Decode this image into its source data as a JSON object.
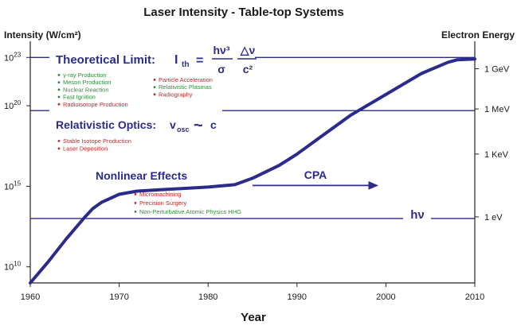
{
  "chart_data": {
    "type": "line",
    "title": "Laser Intensity - Table-top Systems",
    "ylabel": "Intensity (W/cm²)",
    "y2label": "Electron Energy",
    "xlabel": "Year",
    "xlim": [
      1960,
      2010
    ],
    "ylim_log10": [
      9,
      24
    ],
    "x_ticks": [
      "1960",
      "1970",
      "1980",
      "1990",
      "2000",
      "2010"
    ],
    "x_tick_values": [
      1960,
      1970,
      1980,
      1990,
      2000,
      2010
    ],
    "y_ticks": [
      {
        "base": "10",
        "exp": "23",
        "value": 23
      },
      {
        "base": "10",
        "exp": "20",
        "value": 20
      },
      {
        "base": "10",
        "exp": "15",
        "value": 15
      },
      {
        "base": "10",
        "exp": "10",
        "value": 10
      }
    ],
    "right_ticks": [
      {
        "label": "1 GeV",
        "value": 22.3
      },
      {
        "label": "1 MeV",
        "value": 19.8
      },
      {
        "label": "1 KeV",
        "value": 17.0
      },
      {
        "label": "1 eV",
        "value": 13.1
      }
    ],
    "series": [
      {
        "color": "#2b2b8c",
        "x": [
          1960,
          1962,
          1964,
          1966,
          1967,
          1968,
          1970,
          1972,
          1975,
          1980,
          1983,
          1985,
          1988,
          1990,
          1993,
          1996,
          2000,
          2004,
          2007,
          2008,
          2010
        ],
        "y": [
          9.0,
          10.3,
          11.7,
          13.0,
          13.6,
          14.0,
          14.5,
          14.7,
          14.8,
          14.95,
          15.1,
          15.5,
          16.3,
          17.0,
          18.2,
          19.4,
          20.7,
          22.0,
          22.7,
          22.85,
          22.9
        ]
      }
    ],
    "hlines": [
      {
        "label": "Theoretical Limit:",
        "value": 23
      },
      {
        "label": "Relativistic Optics:",
        "value": 19.7
      },
      {
        "label": "hν",
        "value": 13.0
      }
    ],
    "annotations": {
      "theoretical": {
        "label": "Theoretical Limit:",
        "formula_lhs": "I",
        "formula_sub": "th",
        "eq": "=",
        "num1": "hν³",
        "den1": "σ",
        "num2": "△ν",
        "den2": "c²",
        "left_list": [
          "γ-ray Production",
          "Meson Production",
          "Nuclear Reaction",
          "Fast Ignition",
          "Radioisotope Production"
        ],
        "left_colors": [
          "green",
          "green",
          "green",
          "green",
          "red"
        ],
        "right_list": [
          "Particle Acceleration",
          "Relativistic Plasmas",
          "Radiography"
        ],
        "right_colors": [
          "red",
          "green",
          "red"
        ]
      },
      "relativistic": {
        "label": "Relativistic Optics:",
        "formula": "v",
        "formula_sub": "osc",
        "approx": "~",
        "c": "c",
        "list": [
          "Stable Isotope Production",
          "Laser Deposition"
        ],
        "colors": [
          "red",
          "red"
        ]
      },
      "nonlinear": {
        "label": "Nonlinear Effects",
        "list": [
          "Micromachining",
          "Precision Surgery",
          "Non-Perturbative Atomic Physics HHG"
        ],
        "colors": [
          "red",
          "red",
          "green"
        ]
      },
      "cpa": {
        "label": "CPA",
        "x_start": 1985,
        "x_end": 1999,
        "y": 15.05
      },
      "hnu": {
        "label": "hν"
      }
    }
  }
}
